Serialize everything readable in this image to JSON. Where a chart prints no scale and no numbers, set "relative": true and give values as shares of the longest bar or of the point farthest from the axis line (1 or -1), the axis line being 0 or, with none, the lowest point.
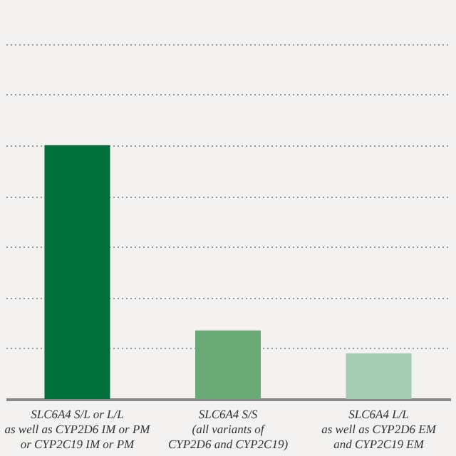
{
  "chart_data": {
    "type": "bar",
    "relative": true,
    "grid": "y",
    "categories": [
      "SLC6A4 S/L or L/L\nas well as CYP2D6 IM or PM\nor CYP2C19 IM or PM",
      "SLC6A4 S/S\n(all variants of\nCYP2D6 and CYP2C19)",
      "SLC6A4 L/L\nas well as CYP2D6 EM\nand CYP2C19 EM"
    ],
    "values": [
      1,
      0.27,
      0.18
    ],
    "colors": [
      "#006f3c",
      "#6aa874",
      "#a6cbb3"
    ]
  }
}
